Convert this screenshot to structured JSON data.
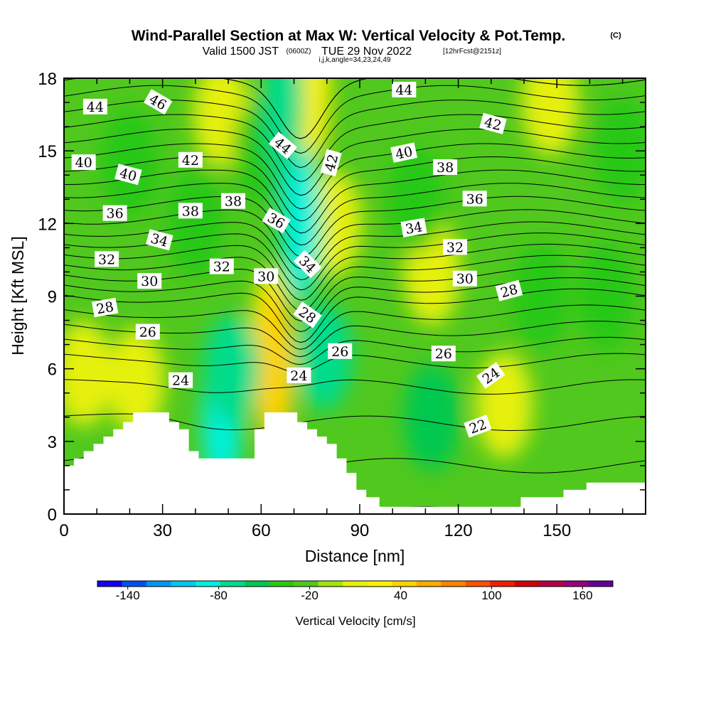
{
  "header": {
    "title": "Wind-Parallel Section at Max W: Vertical Velocity & Pot.Temp.",
    "title_mark": "(C)",
    "valid_prefix": "Valid 1500 JST",
    "valid_utc": "(0600Z)",
    "valid_date": "TUE 29 Nov 2022",
    "forecast": "[12hrFcst@2151z]",
    "indices": "i,j,k,angle=34,23,24,49"
  },
  "chart_data": {
    "type": "heatmap",
    "xlabel": "Distance [nm]",
    "ylabel": "Height [Kft MSL]",
    "xlim": [
      0,
      177
    ],
    "ylim": [
      0,
      18
    ],
    "x_ticks": [
      0,
      30,
      60,
      90,
      120,
      150
    ],
    "y_ticks": [
      0,
      3,
      6,
      9,
      12,
      15,
      18
    ],
    "colorbar": {
      "label": "Vertical Velocity [cm/s]",
      "ticks": [
        -140,
        -80,
        -20,
        40,
        100,
        160
      ],
      "min": -160,
      "max": 180,
      "step": 20,
      "colors": [
        "#1400f0",
        "#0050f0",
        "#0096f0",
        "#00c8f0",
        "#00f0dc",
        "#00dc8c",
        "#00c850",
        "#28c814",
        "#50c81e",
        "#a0e60a",
        "#e6f00a",
        "#fff000",
        "#ffd200",
        "#ffaa00",
        "#ff8200",
        "#ff5000",
        "#f01e00",
        "#d2000a",
        "#b40046",
        "#960078",
        "#640096"
      ]
    },
    "velocity_field": [
      {
        "name": "updraft",
        "x": 6,
        "y": 5.8,
        "value": 45
      },
      {
        "name": "updraft",
        "x": 22,
        "y": 5.5,
        "value": 45
      },
      {
        "name": "updraft",
        "x": 48,
        "y": 16.5,
        "value": 45
      },
      {
        "name": "updraft",
        "x": 63,
        "y": 7.0,
        "value": 70
      },
      {
        "name": "updraft",
        "x": 64,
        "y": 6.0,
        "value": 80
      },
      {
        "name": "updraft",
        "x": 82,
        "y": 12.0,
        "value": 45
      },
      {
        "name": "updraft",
        "x": 75,
        "y": 17.6,
        "value": 70
      },
      {
        "name": "updraft",
        "x": 112,
        "y": 10.0,
        "value": 40
      },
      {
        "name": "updraft",
        "x": 134,
        "y": 4.5,
        "value": 50
      },
      {
        "name": "updraft",
        "x": 148,
        "y": 17.0,
        "value": 40
      },
      {
        "name": "updraft",
        "x": 20,
        "y": 14.5,
        "value": -20
      },
      {
        "name": "updraft",
        "x": 40,
        "y": 12.0,
        "value": -20
      },
      {
        "name": "updraft",
        "x": 60,
        "y": 15.0,
        "value": -20
      },
      {
        "name": "updraft",
        "x": 107,
        "y": 13.0,
        "value": -20
      },
      {
        "name": "updraft",
        "x": 112,
        "y": 4.0,
        "value": -25
      },
      {
        "name": "updraft",
        "x": 145,
        "y": 9.0,
        "value": -20
      },
      {
        "name": "updraft",
        "x": 170,
        "y": 15.0,
        "value": -20
      },
      {
        "name": "updraft",
        "x": 165,
        "y": 9.0,
        "value": -20
      },
      {
        "name": "downdraft",
        "x": 48,
        "y": 4.0,
        "value": -75
      },
      {
        "name": "downdraft",
        "x": 51,
        "y": 6.0,
        "value": -50
      },
      {
        "name": "downdraft",
        "x": 72,
        "y": 12.0,
        "value": -80
      },
      {
        "name": "downdraft",
        "x": 79,
        "y": 6.5,
        "value": -45
      },
      {
        "name": "downdraft",
        "x": 67,
        "y": 17.0,
        "value": -60
      }
    ],
    "theta_contours": {
      "levels": [
        21,
        22,
        23,
        24,
        25,
        26,
        27,
        28,
        29,
        30,
        31,
        32,
        33,
        34,
        35,
        36,
        37,
        38,
        39,
        40,
        41,
        42,
        43,
        44,
        45,
        46,
        47
      ],
      "base_profile": [
        {
          "height": 0,
          "theta": 21
        },
        {
          "height": 3,
          "theta": 22.5
        },
        {
          "height": 6,
          "theta": 24.5
        },
        {
          "height": 9,
          "theta": 29
        },
        {
          "height": 12,
          "theta": 35.5
        },
        {
          "height": 15,
          "theta": 41
        },
        {
          "height": 18,
          "theta": 46
        }
      ],
      "labels": [
        {
          "text": "44",
          "x": 9.5,
          "y": 16.8,
          "angle": 0
        },
        {
          "text": "46",
          "x": 28.5,
          "y": 17.0,
          "angle": 30
        },
        {
          "text": "40",
          "x": 6.0,
          "y": 14.5,
          "angle": 0
        },
        {
          "text": "40",
          "x": 19.5,
          "y": 14.0,
          "angle": 15
        },
        {
          "text": "42",
          "x": 38.5,
          "y": 14.6,
          "angle": 0
        },
        {
          "text": "44",
          "x": 66.5,
          "y": 15.2,
          "angle": 40
        },
        {
          "text": "42",
          "x": 81.5,
          "y": 14.5,
          "angle": -75
        },
        {
          "text": "44",
          "x": 103.5,
          "y": 17.5,
          "angle": 0
        },
        {
          "text": "40",
          "x": 103.5,
          "y": 14.9,
          "angle": -12
        },
        {
          "text": "42",
          "x": 130.5,
          "y": 16.1,
          "angle": 15
        },
        {
          "text": "38",
          "x": 116.0,
          "y": 14.3,
          "angle": 0
        },
        {
          "text": "36",
          "x": 125.0,
          "y": 13.0,
          "angle": 0
        },
        {
          "text": "36",
          "x": 15.5,
          "y": 12.4,
          "angle": 0
        },
        {
          "text": "38",
          "x": 38.5,
          "y": 12.5,
          "angle": 0
        },
        {
          "text": "38",
          "x": 51.5,
          "y": 12.9,
          "angle": 0
        },
        {
          "text": "36",
          "x": 64.5,
          "y": 12.1,
          "angle": 30
        },
        {
          "text": "34",
          "x": 29.0,
          "y": 11.3,
          "angle": 15
        },
        {
          "text": "34",
          "x": 106.5,
          "y": 11.8,
          "angle": -10
        },
        {
          "text": "32",
          "x": 13.0,
          "y": 10.5,
          "angle": 0
        },
        {
          "text": "32",
          "x": 48.0,
          "y": 10.2,
          "angle": 0
        },
        {
          "text": "32",
          "x": 119.0,
          "y": 11.0,
          "angle": 0
        },
        {
          "text": "34",
          "x": 74.0,
          "y": 10.3,
          "angle": 45
        },
        {
          "text": "30",
          "x": 26.0,
          "y": 9.6,
          "angle": 0
        },
        {
          "text": "30",
          "x": 61.5,
          "y": 9.8,
          "angle": 0
        },
        {
          "text": "30",
          "x": 122.0,
          "y": 9.7,
          "angle": 0
        },
        {
          "text": "28",
          "x": 12.5,
          "y": 8.5,
          "angle": -10
        },
        {
          "text": "28",
          "x": 74.0,
          "y": 8.2,
          "angle": 35
        },
        {
          "text": "28",
          "x": 135.5,
          "y": 9.2,
          "angle": -15
        },
        {
          "text": "26",
          "x": 25.5,
          "y": 7.5,
          "angle": 0
        },
        {
          "text": "26",
          "x": 84.0,
          "y": 6.7,
          "angle": 0
        },
        {
          "text": "26",
          "x": 115.5,
          "y": 6.6,
          "angle": 0
        },
        {
          "text": "24",
          "x": 35.5,
          "y": 5.5,
          "angle": 0
        },
        {
          "text": "24",
          "x": 71.5,
          "y": 5.7,
          "angle": 0
        },
        {
          "text": "24",
          "x": 130.0,
          "y": 5.7,
          "angle": -35
        },
        {
          "text": "22",
          "x": 126.0,
          "y": 3.6,
          "angle": -20
        }
      ]
    },
    "terrain": [
      [
        0,
        2.0
      ],
      [
        3,
        2.0
      ],
      [
        3,
        2.3
      ],
      [
        6,
        2.3
      ],
      [
        6,
        2.6
      ],
      [
        9,
        2.6
      ],
      [
        9,
        2.9
      ],
      [
        12,
        2.9
      ],
      [
        12,
        3.2
      ],
      [
        15,
        3.2
      ],
      [
        15,
        3.5
      ],
      [
        18,
        3.5
      ],
      [
        18,
        3.8
      ],
      [
        21,
        3.8
      ],
      [
        21,
        4.2
      ],
      [
        32,
        4.2
      ],
      [
        32,
        3.8
      ],
      [
        35,
        3.8
      ],
      [
        35,
        3.5
      ],
      [
        38,
        3.5
      ],
      [
        38,
        2.6
      ],
      [
        41,
        2.6
      ],
      [
        41,
        2.3
      ],
      [
        58,
        2.3
      ],
      [
        58,
        3.5
      ],
      [
        61,
        3.5
      ],
      [
        61,
        4.2
      ],
      [
        71,
        4.2
      ],
      [
        71,
        3.8
      ],
      [
        74,
        3.8
      ],
      [
        74,
        3.5
      ],
      [
        77,
        3.5
      ],
      [
        77,
        3.2
      ],
      [
        80,
        3.2
      ],
      [
        80,
        2.9
      ],
      [
        83,
        2.9
      ],
      [
        83,
        2.3
      ],
      [
        86,
        2.3
      ],
      [
        86,
        1.7
      ],
      [
        89,
        1.7
      ],
      [
        89,
        1.0
      ],
      [
        92,
        1.0
      ],
      [
        92,
        0.7
      ],
      [
        96,
        0.7
      ],
      [
        96,
        0.3
      ],
      [
        139,
        0.3
      ],
      [
        139,
        0.7
      ],
      [
        152,
        0.7
      ],
      [
        152,
        1.0
      ],
      [
        159,
        1.0
      ],
      [
        159,
        1.3
      ],
      [
        177,
        1.3
      ]
    ]
  }
}
